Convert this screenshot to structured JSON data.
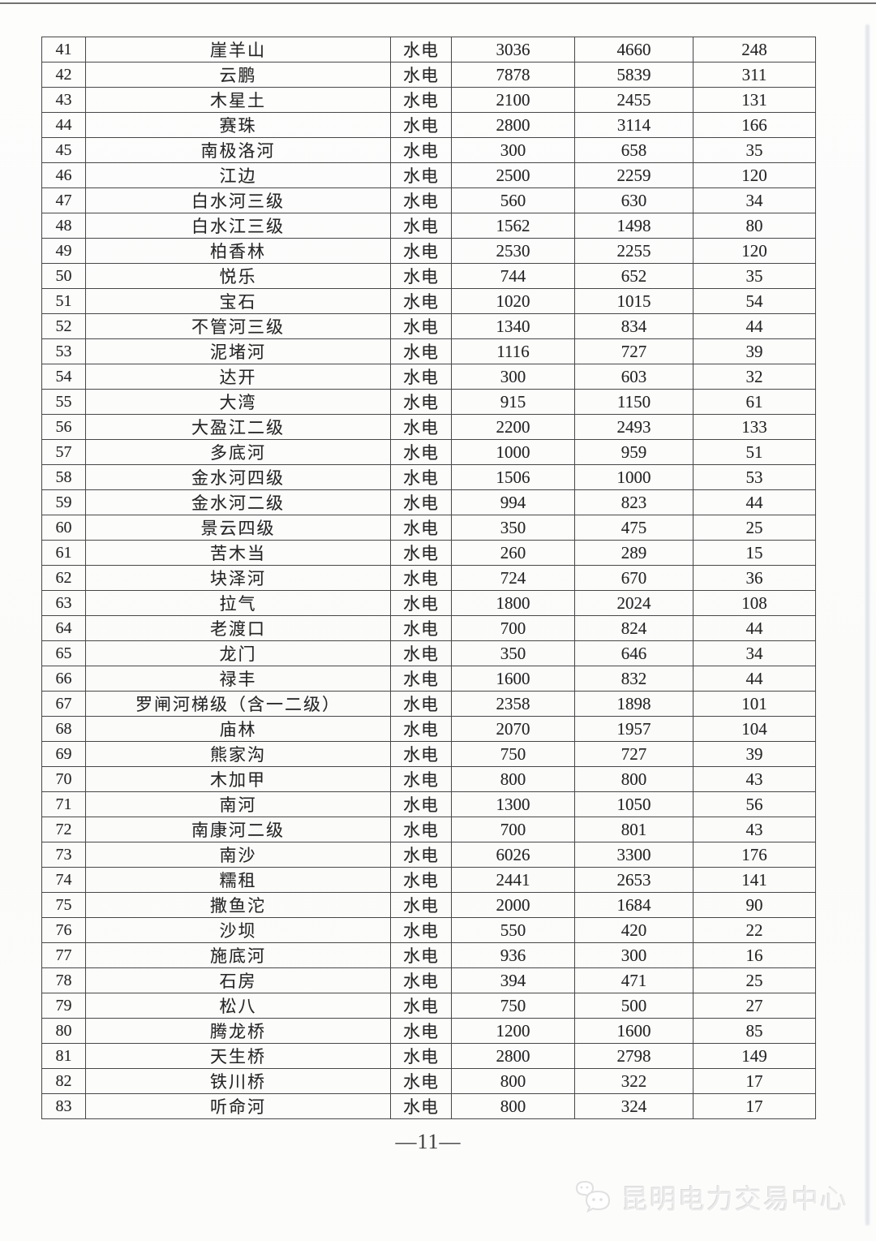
{
  "page": {
    "page_number": "—11—",
    "watermark_text": "昆明电力交易中心"
  },
  "colors": {
    "paper": "#fcfcfb",
    "table_border": "#474747",
    "text": "#262626",
    "watermark": "#ebebeb"
  },
  "table": {
    "rows": [
      [
        "41",
        "崖羊山",
        "水电",
        "3036",
        "4660",
        "248"
      ],
      [
        "42",
        "云鹏",
        "水电",
        "7878",
        "5839",
        "311"
      ],
      [
        "43",
        "木星土",
        "水电",
        "2100",
        "2455",
        "131"
      ],
      [
        "44",
        "赛珠",
        "水电",
        "2800",
        "3114",
        "166"
      ],
      [
        "45",
        "南极洛河",
        "水电",
        "300",
        "658",
        "35"
      ],
      [
        "46",
        "江边",
        "水电",
        "2500",
        "2259",
        "120"
      ],
      [
        "47",
        "白水河三级",
        "水电",
        "560",
        "630",
        "34"
      ],
      [
        "48",
        "白水江三级",
        "水电",
        "1562",
        "1498",
        "80"
      ],
      [
        "49",
        "柏香林",
        "水电",
        "2530",
        "2255",
        "120"
      ],
      [
        "50",
        "悦乐",
        "水电",
        "744",
        "652",
        "35"
      ],
      [
        "51",
        "宝石",
        "水电",
        "1020",
        "1015",
        "54"
      ],
      [
        "52",
        "不管河三级",
        "水电",
        "1340",
        "834",
        "44"
      ],
      [
        "53",
        "泥堵河",
        "水电",
        "1116",
        "727",
        "39"
      ],
      [
        "54",
        "达开",
        "水电",
        "300",
        "603",
        "32"
      ],
      [
        "55",
        "大湾",
        "水电",
        "915",
        "1150",
        "61"
      ],
      [
        "56",
        "大盈江二级",
        "水电",
        "2200",
        "2493",
        "133"
      ],
      [
        "57",
        "多底河",
        "水电",
        "1000",
        "959",
        "51"
      ],
      [
        "58",
        "金水河四级",
        "水电",
        "1506",
        "1000",
        "53"
      ],
      [
        "59",
        "金水河二级",
        "水电",
        "994",
        "823",
        "44"
      ],
      [
        "60",
        "景云四级",
        "水电",
        "350",
        "475",
        "25"
      ],
      [
        "61",
        "苦木当",
        "水电",
        "260",
        "289",
        "15"
      ],
      [
        "62",
        "块泽河",
        "水电",
        "724",
        "670",
        "36"
      ],
      [
        "63",
        "拉气",
        "水电",
        "1800",
        "2024",
        "108"
      ],
      [
        "64",
        "老渡口",
        "水电",
        "700",
        "824",
        "44"
      ],
      [
        "65",
        "龙门",
        "水电",
        "350",
        "646",
        "34"
      ],
      [
        "66",
        "禄丰",
        "水电",
        "1600",
        "832",
        "44"
      ],
      [
        "67",
        "罗闸河梯级（含一二级）",
        "水电",
        "2358",
        "1898",
        "101"
      ],
      [
        "68",
        "庙林",
        "水电",
        "2070",
        "1957",
        "104"
      ],
      [
        "69",
        "熊家沟",
        "水电",
        "750",
        "727",
        "39"
      ],
      [
        "70",
        "木加甲",
        "水电",
        "800",
        "800",
        "43"
      ],
      [
        "71",
        "南河",
        "水电",
        "1300",
        "1050",
        "56"
      ],
      [
        "72",
        "南康河二级",
        "水电",
        "700",
        "801",
        "43"
      ],
      [
        "73",
        "南沙",
        "水电",
        "6026",
        "3300",
        "176"
      ],
      [
        "74",
        "糯租",
        "水电",
        "2441",
        "2653",
        "141"
      ],
      [
        "75",
        "撒鱼沱",
        "水电",
        "2000",
        "1684",
        "90"
      ],
      [
        "76",
        "沙坝",
        "水电",
        "550",
        "420",
        "22"
      ],
      [
        "77",
        "施底河",
        "水电",
        "936",
        "300",
        "16"
      ],
      [
        "78",
        "石房",
        "水电",
        "394",
        "471",
        "25"
      ],
      [
        "79",
        "松八",
        "水电",
        "750",
        "500",
        "27"
      ],
      [
        "80",
        "腾龙桥",
        "水电",
        "1200",
        "1600",
        "85"
      ],
      [
        "81",
        "天生桥",
        "水电",
        "2800",
        "2798",
        "149"
      ],
      [
        "82",
        "铁川桥",
        "水电",
        "800",
        "322",
        "17"
      ],
      [
        "83",
        "听命河",
        "水电",
        "800",
        "324",
        "17"
      ]
    ]
  }
}
